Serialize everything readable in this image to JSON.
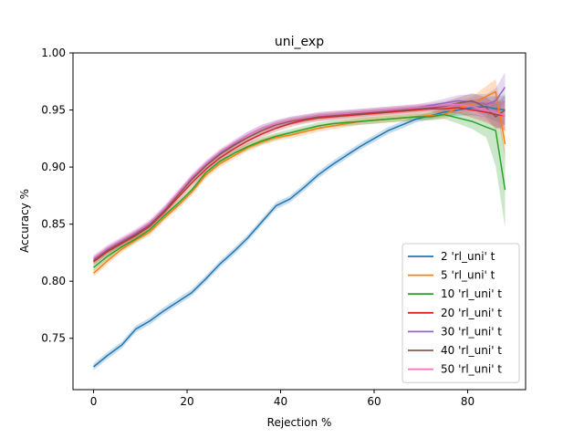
{
  "chart_data": {
    "type": "line",
    "title": "uni_exp",
    "xlabel": "Rejection %",
    "ylabel": "Accuracy %",
    "xlim": [
      -4.4,
      92.4
    ],
    "ylim": [
      0.705,
      1.0
    ],
    "xticks": [
      0,
      20,
      40,
      60,
      80
    ],
    "yticks": [
      0.75,
      0.8,
      0.85,
      0.9,
      0.95,
      1.0
    ],
    "xtick_labels": [
      "0",
      "20",
      "40",
      "60",
      "80"
    ],
    "ytick_labels": [
      "0.75",
      "0.80",
      "0.85",
      "0.90",
      "0.95",
      "1.00"
    ],
    "grid": false,
    "legend_position": "lower right",
    "shaded_confidence_band": true,
    "series": [
      {
        "name": "2 'rl_uni' t",
        "color": "#1f77b4",
        "points": [
          [
            0,
            0.725
          ],
          [
            3,
            0.735
          ],
          [
            6,
            0.744
          ],
          [
            9,
            0.758
          ],
          [
            12,
            0.765
          ],
          [
            15,
            0.774
          ],
          [
            18,
            0.782
          ],
          [
            21,
            0.79
          ],
          [
            24,
            0.802
          ],
          [
            27,
            0.815
          ],
          [
            30,
            0.826
          ],
          [
            33,
            0.838
          ],
          [
            36,
            0.852
          ],
          [
            39,
            0.866
          ],
          [
            42,
            0.872
          ],
          [
            45,
            0.882
          ],
          [
            48,
            0.893
          ],
          [
            51,
            0.902
          ],
          [
            54,
            0.91
          ],
          [
            57,
            0.918
          ],
          [
            60,
            0.925
          ],
          [
            63,
            0.932
          ],
          [
            66,
            0.937
          ],
          [
            69,
            0.942
          ],
          [
            72,
            0.945
          ],
          [
            75,
            0.948
          ],
          [
            78,
            0.95
          ],
          [
            81,
            0.952
          ],
          [
            84,
            0.953
          ],
          [
            86,
            0.951
          ],
          [
            88,
            0.95
          ]
        ]
      },
      {
        "name": "5 'rl_uni' t",
        "color": "#ff7f0e",
        "points": [
          [
            0,
            0.807
          ],
          [
            3,
            0.818
          ],
          [
            6,
            0.828
          ],
          [
            9,
            0.836
          ],
          [
            12,
            0.843
          ],
          [
            15,
            0.855
          ],
          [
            18,
            0.866
          ],
          [
            21,
            0.878
          ],
          [
            24,
            0.893
          ],
          [
            27,
            0.903
          ],
          [
            30,
            0.91
          ],
          [
            33,
            0.917
          ],
          [
            36,
            0.922
          ],
          [
            39,
            0.926
          ],
          [
            42,
            0.928
          ],
          [
            45,
            0.931
          ],
          [
            48,
            0.934
          ],
          [
            51,
            0.936
          ],
          [
            54,
            0.938
          ],
          [
            57,
            0.94
          ],
          [
            60,
            0.941
          ],
          [
            63,
            0.942
          ],
          [
            66,
            0.943
          ],
          [
            69,
            0.944
          ],
          [
            72,
            0.945
          ],
          [
            75,
            0.946
          ],
          [
            78,
            0.952
          ],
          [
            81,
            0.955
          ],
          [
            84,
            0.962
          ],
          [
            86,
            0.966
          ],
          [
            88,
            0.92
          ]
        ]
      },
      {
        "name": "10 'rl_uni' t",
        "color": "#2ca02c",
        "points": [
          [
            0,
            0.812
          ],
          [
            3,
            0.822
          ],
          [
            6,
            0.83
          ],
          [
            9,
            0.837
          ],
          [
            12,
            0.845
          ],
          [
            15,
            0.857
          ],
          [
            18,
            0.868
          ],
          [
            21,
            0.88
          ],
          [
            24,
            0.895
          ],
          [
            27,
            0.905
          ],
          [
            30,
            0.912
          ],
          [
            33,
            0.918
          ],
          [
            36,
            0.923
          ],
          [
            39,
            0.927
          ],
          [
            42,
            0.93
          ],
          [
            45,
            0.933
          ],
          [
            48,
            0.936
          ],
          [
            51,
            0.938
          ],
          [
            54,
            0.939
          ],
          [
            57,
            0.94
          ],
          [
            60,
            0.941
          ],
          [
            63,
            0.942
          ],
          [
            66,
            0.943
          ],
          [
            69,
            0.944
          ],
          [
            72,
            0.944
          ],
          [
            75,
            0.946
          ],
          [
            78,
            0.943
          ],
          [
            81,
            0.94
          ],
          [
            84,
            0.935
          ],
          [
            86,
            0.932
          ],
          [
            88,
            0.88
          ]
        ]
      },
      {
        "name": "20 'rl_uni' t",
        "color": "#d62728",
        "points": [
          [
            0,
            0.817
          ],
          [
            3,
            0.826
          ],
          [
            6,
            0.833
          ],
          [
            9,
            0.84
          ],
          [
            12,
            0.848
          ],
          [
            15,
            0.86
          ],
          [
            18,
            0.873
          ],
          [
            21,
            0.886
          ],
          [
            24,
            0.898
          ],
          [
            27,
            0.908
          ],
          [
            30,
            0.916
          ],
          [
            33,
            0.923
          ],
          [
            36,
            0.929
          ],
          [
            39,
            0.934
          ],
          [
            42,
            0.938
          ],
          [
            45,
            0.941
          ],
          [
            48,
            0.943
          ],
          [
            51,
            0.944
          ],
          [
            54,
            0.945
          ],
          [
            57,
            0.946
          ],
          [
            60,
            0.947
          ],
          [
            63,
            0.948
          ],
          [
            66,
            0.949
          ],
          [
            69,
            0.95
          ],
          [
            72,
            0.951
          ],
          [
            75,
            0.951
          ],
          [
            78,
            0.952
          ],
          [
            81,
            0.95
          ],
          [
            84,
            0.948
          ],
          [
            86,
            0.946
          ],
          [
            88,
            0.945
          ]
        ]
      },
      {
        "name": "30 'rl_uni' t",
        "color": "#9467bd",
        "points": [
          [
            0,
            0.819
          ],
          [
            3,
            0.828
          ],
          [
            6,
            0.835
          ],
          [
            9,
            0.842
          ],
          [
            12,
            0.85
          ],
          [
            15,
            0.862
          ],
          [
            18,
            0.876
          ],
          [
            21,
            0.89
          ],
          [
            24,
            0.902
          ],
          [
            27,
            0.912
          ],
          [
            30,
            0.92
          ],
          [
            33,
            0.928
          ],
          [
            36,
            0.934
          ],
          [
            39,
            0.938
          ],
          [
            42,
            0.941
          ],
          [
            45,
            0.943
          ],
          [
            48,
            0.945
          ],
          [
            51,
            0.946
          ],
          [
            54,
            0.947
          ],
          [
            57,
            0.948
          ],
          [
            60,
            0.949
          ],
          [
            63,
            0.95
          ],
          [
            66,
            0.951
          ],
          [
            69,
            0.952
          ],
          [
            72,
            0.954
          ],
          [
            75,
            0.956
          ],
          [
            78,
            0.958
          ],
          [
            81,
            0.957
          ],
          [
            84,
            0.955
          ],
          [
            86,
            0.958
          ],
          [
            88,
            0.97
          ]
        ]
      },
      {
        "name": "40 'rl_uni' t",
        "color": "#8c564b",
        "points": [
          [
            0,
            0.818
          ],
          [
            3,
            0.827
          ],
          [
            6,
            0.834
          ],
          [
            9,
            0.841
          ],
          [
            12,
            0.849
          ],
          [
            15,
            0.861
          ],
          [
            18,
            0.875
          ],
          [
            21,
            0.889
          ],
          [
            24,
            0.901
          ],
          [
            27,
            0.911
          ],
          [
            30,
            0.919
          ],
          [
            33,
            0.926
          ],
          [
            36,
            0.932
          ],
          [
            39,
            0.937
          ],
          [
            42,
            0.94
          ],
          [
            45,
            0.942
          ],
          [
            48,
            0.944
          ],
          [
            51,
            0.945
          ],
          [
            54,
            0.946
          ],
          [
            57,
            0.947
          ],
          [
            60,
            0.948
          ],
          [
            63,
            0.949
          ],
          [
            66,
            0.95
          ],
          [
            69,
            0.951
          ],
          [
            72,
            0.952
          ],
          [
            75,
            0.953
          ],
          [
            78,
            0.956
          ],
          [
            81,
            0.958
          ],
          [
            84,
            0.952
          ],
          [
            86,
            0.944
          ],
          [
            88,
            0.95
          ]
        ]
      },
      {
        "name": "50 'rl_uni' t",
        "color": "#e377c2",
        "points": [
          [
            0,
            0.82
          ],
          [
            3,
            0.829
          ],
          [
            6,
            0.836
          ],
          [
            9,
            0.843
          ],
          [
            12,
            0.851
          ],
          [
            15,
            0.863
          ],
          [
            18,
            0.877
          ],
          [
            21,
            0.891
          ],
          [
            24,
            0.903
          ],
          [
            27,
            0.913
          ],
          [
            30,
            0.921
          ],
          [
            33,
            0.928
          ],
          [
            36,
            0.934
          ],
          [
            39,
            0.938
          ],
          [
            42,
            0.941
          ],
          [
            45,
            0.943
          ],
          [
            48,
            0.945
          ],
          [
            51,
            0.946
          ],
          [
            54,
            0.947
          ],
          [
            57,
            0.948
          ],
          [
            60,
            0.949
          ],
          [
            63,
            0.95
          ],
          [
            66,
            0.951
          ],
          [
            69,
            0.952
          ],
          [
            72,
            0.953
          ],
          [
            75,
            0.954
          ],
          [
            78,
            0.955
          ],
          [
            81,
            0.953
          ],
          [
            84,
            0.95
          ],
          [
            86,
            0.948
          ],
          [
            88,
            0.945
          ]
        ]
      }
    ]
  }
}
